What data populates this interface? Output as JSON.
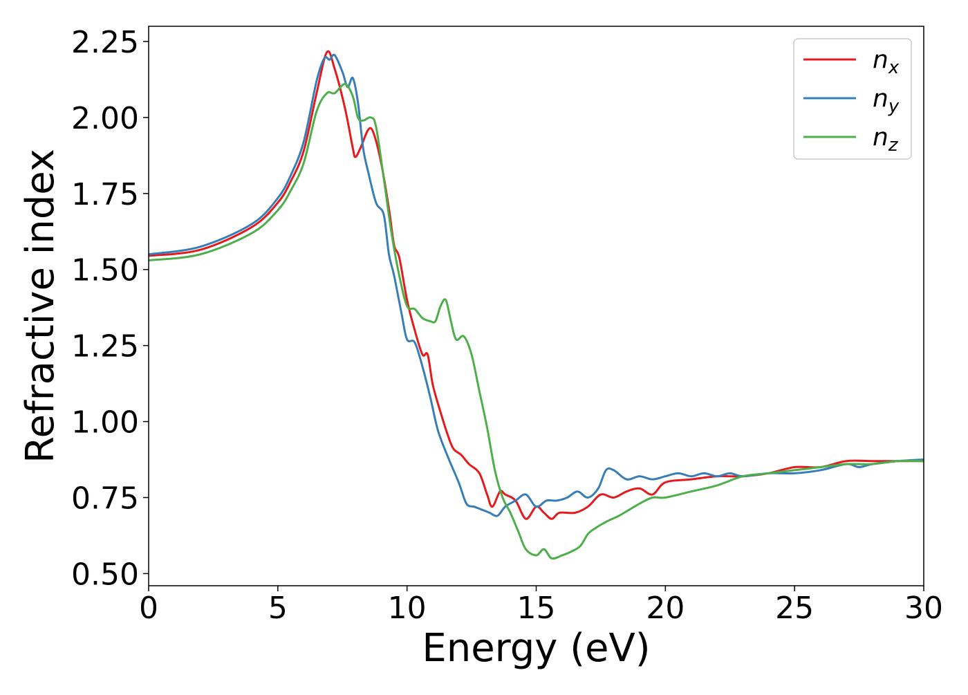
{
  "chart_data": {
    "type": "line",
    "title": "",
    "xlabel": "Energy (eV)",
    "ylabel": "Refractive index",
    "xlim": [
      0,
      30
    ],
    "ylim": [
      0.46,
      2.3
    ],
    "xticks": [
      0,
      5,
      10,
      15,
      20,
      25,
      30
    ],
    "xtick_labels": [
      "0",
      "5",
      "10",
      "15",
      "20",
      "25",
      "30"
    ],
    "yticks": [
      0.5,
      0.75,
      1.0,
      1.25,
      1.5,
      1.75,
      2.0,
      2.25
    ],
    "ytick_labels": [
      "0.50",
      "0.75",
      "1.00",
      "1.25",
      "1.50",
      "1.75",
      "2.00",
      "2.25"
    ],
    "grid": false,
    "legend_position": "top-right",
    "series": [
      {
        "name": "n_x",
        "label_base": "n",
        "label_sub": "x",
        "color": "#e41a1c",
        "points": [
          [
            0,
            1.545
          ],
          [
            2,
            1.565
          ],
          [
            4,
            1.64
          ],
          [
            5,
            1.72
          ],
          [
            5.5,
            1.79
          ],
          [
            6,
            1.89
          ],
          [
            6.5,
            2.08
          ],
          [
            6.9,
            2.215
          ],
          [
            7.2,
            2.16
          ],
          [
            7.6,
            2.03
          ],
          [
            7.9,
            1.9
          ],
          [
            8.0,
            1.87
          ],
          [
            8.2,
            1.9
          ],
          [
            8.5,
            1.96
          ],
          [
            8.7,
            1.95
          ],
          [
            9.0,
            1.85
          ],
          [
            9.3,
            1.7
          ],
          [
            9.5,
            1.58
          ],
          [
            9.7,
            1.54
          ],
          [
            10.0,
            1.4
          ],
          [
            10.3,
            1.3
          ],
          [
            10.6,
            1.22
          ],
          [
            10.8,
            1.22
          ],
          [
            11.0,
            1.12
          ],
          [
            11.3,
            1.03
          ],
          [
            11.6,
            0.95
          ],
          [
            11.8,
            0.91
          ],
          [
            12.1,
            0.89
          ],
          [
            12.4,
            0.86
          ],
          [
            12.8,
            0.83
          ],
          [
            13.1,
            0.76
          ],
          [
            13.3,
            0.72
          ],
          [
            13.6,
            0.77
          ],
          [
            13.8,
            0.76
          ],
          [
            14.2,
            0.74
          ],
          [
            14.6,
            0.68
          ],
          [
            15.0,
            0.72
          ],
          [
            15.3,
            0.7
          ],
          [
            15.6,
            0.68
          ],
          [
            15.9,
            0.7
          ],
          [
            16.5,
            0.7
          ],
          [
            17.0,
            0.72
          ],
          [
            17.5,
            0.76
          ],
          [
            18.0,
            0.75
          ],
          [
            18.5,
            0.77
          ],
          [
            19.0,
            0.78
          ],
          [
            19.5,
            0.76
          ],
          [
            20.0,
            0.8
          ],
          [
            21.0,
            0.81
          ],
          [
            22.0,
            0.82
          ],
          [
            23.0,
            0.82
          ],
          [
            24.0,
            0.83
          ],
          [
            25.0,
            0.85
          ],
          [
            26.0,
            0.85
          ],
          [
            27.0,
            0.87
          ],
          [
            28.0,
            0.87
          ],
          [
            29.0,
            0.87
          ],
          [
            30.0,
            0.87
          ]
        ]
      },
      {
        "name": "n_y",
        "label_base": "n",
        "label_sub": "y",
        "color": "#377eb8",
        "points": [
          [
            0,
            1.55
          ],
          [
            2,
            1.575
          ],
          [
            4,
            1.65
          ],
          [
            5,
            1.735
          ],
          [
            5.5,
            1.81
          ],
          [
            6,
            1.92
          ],
          [
            6.5,
            2.12
          ],
          [
            6.8,
            2.195
          ],
          [
            7.0,
            2.19
          ],
          [
            7.2,
            2.205
          ],
          [
            7.5,
            2.15
          ],
          [
            7.7,
            2.1
          ],
          [
            7.9,
            2.13
          ],
          [
            8.1,
            2.05
          ],
          [
            8.3,
            1.9
          ],
          [
            8.5,
            1.82
          ],
          [
            8.8,
            1.72
          ],
          [
            9.1,
            1.68
          ],
          [
            9.3,
            1.55
          ],
          [
            9.5,
            1.48
          ],
          [
            9.8,
            1.35
          ],
          [
            10.0,
            1.27
          ],
          [
            10.3,
            1.26
          ],
          [
            10.6,
            1.18
          ],
          [
            10.9,
            1.08
          ],
          [
            11.2,
            0.97
          ],
          [
            11.6,
            0.88
          ],
          [
            12.0,
            0.8
          ],
          [
            12.3,
            0.73
          ],
          [
            12.6,
            0.72
          ],
          [
            12.9,
            0.71
          ],
          [
            13.2,
            0.7
          ],
          [
            13.5,
            0.69
          ],
          [
            13.8,
            0.72
          ],
          [
            14.2,
            0.74
          ],
          [
            14.6,
            0.76
          ],
          [
            15.0,
            0.72
          ],
          [
            15.4,
            0.74
          ],
          [
            15.8,
            0.74
          ],
          [
            16.2,
            0.75
          ],
          [
            16.6,
            0.77
          ],
          [
            17.0,
            0.75
          ],
          [
            17.4,
            0.78
          ],
          [
            17.7,
            0.84
          ],
          [
            18.0,
            0.84
          ],
          [
            18.5,
            0.81
          ],
          [
            19.0,
            0.82
          ],
          [
            19.5,
            0.81
          ],
          [
            20.0,
            0.82
          ],
          [
            20.5,
            0.83
          ],
          [
            21.0,
            0.82
          ],
          [
            21.5,
            0.83
          ],
          [
            22.0,
            0.82
          ],
          [
            22.5,
            0.83
          ],
          [
            23.0,
            0.82
          ],
          [
            24.0,
            0.83
          ],
          [
            25.0,
            0.83
          ],
          [
            26.0,
            0.84
          ],
          [
            27.0,
            0.86
          ],
          [
            27.5,
            0.85
          ],
          [
            28.0,
            0.86
          ],
          [
            29.0,
            0.87
          ],
          [
            30.0,
            0.875
          ]
        ]
      },
      {
        "name": "n_z",
        "label_base": "n",
        "label_sub": "z",
        "color": "#4daf4a",
        "points": [
          [
            0,
            1.53
          ],
          [
            2,
            1.55
          ],
          [
            4,
            1.62
          ],
          [
            5,
            1.695
          ],
          [
            5.5,
            1.76
          ],
          [
            6,
            1.85
          ],
          [
            6.5,
            2.02
          ],
          [
            6.9,
            2.08
          ],
          [
            7.2,
            2.08
          ],
          [
            7.6,
            2.11
          ],
          [
            7.9,
            2.07
          ],
          [
            8.1,
            2.0
          ],
          [
            8.3,
            1.99
          ],
          [
            8.6,
            2.0
          ],
          [
            8.8,
            1.97
          ],
          [
            9.1,
            1.8
          ],
          [
            9.4,
            1.62
          ],
          [
            9.7,
            1.48
          ],
          [
            10.0,
            1.38
          ],
          [
            10.3,
            1.37
          ],
          [
            10.6,
            1.34
          ],
          [
            10.9,
            1.33
          ],
          [
            11.1,
            1.33
          ],
          [
            11.3,
            1.38
          ],
          [
            11.5,
            1.4
          ],
          [
            11.7,
            1.33
          ],
          [
            11.9,
            1.27
          ],
          [
            12.2,
            1.28
          ],
          [
            12.5,
            1.22
          ],
          [
            12.8,
            1.1
          ],
          [
            13.1,
            0.98
          ],
          [
            13.4,
            0.84
          ],
          [
            13.7,
            0.75
          ],
          [
            14.0,
            0.7
          ],
          [
            14.3,
            0.64
          ],
          [
            14.6,
            0.58
          ],
          [
            15.0,
            0.56
          ],
          [
            15.3,
            0.58
          ],
          [
            15.6,
            0.55
          ],
          [
            16.0,
            0.56
          ],
          [
            16.3,
            0.57
          ],
          [
            16.7,
            0.59
          ],
          [
            17.0,
            0.63
          ],
          [
            17.3,
            0.65
          ],
          [
            17.7,
            0.67
          ],
          [
            18.2,
            0.69
          ],
          [
            18.6,
            0.71
          ],
          [
            19.0,
            0.73
          ],
          [
            19.5,
            0.75
          ],
          [
            20.0,
            0.75
          ],
          [
            21.0,
            0.77
          ],
          [
            22.0,
            0.79
          ],
          [
            23.0,
            0.82
          ],
          [
            24.0,
            0.83
          ],
          [
            25.0,
            0.84
          ],
          [
            26.0,
            0.85
          ],
          [
            27.0,
            0.86
          ],
          [
            28.0,
            0.86
          ],
          [
            29.0,
            0.87
          ],
          [
            30.0,
            0.87
          ]
        ]
      }
    ]
  }
}
